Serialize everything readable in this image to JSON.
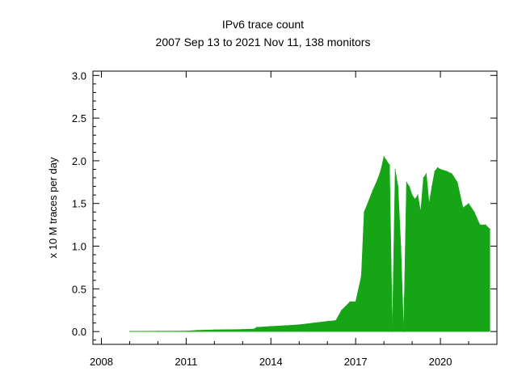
{
  "chart_data": {
    "type": "area",
    "title": "IPv6 trace count",
    "subtitle": "2007 Sep 13 to 2021 Nov 11, 138 monitors",
    "xlabel": "",
    "ylabel": "x 10 M traces per day",
    "xlim": [
      2007.7,
      2022.0
    ],
    "ylim": [
      -0.15,
      3.05
    ],
    "x_ticks": [
      2008,
      2011,
      2014,
      2017,
      2020
    ],
    "x_tick_labels": [
      "2008",
      "2011",
      "2014",
      "2017",
      "2020"
    ],
    "y_ticks": [
      0.0,
      0.5,
      1.0,
      1.5,
      2.0,
      2.5,
      3.0
    ],
    "y_tick_labels": [
      "0.0",
      "0.5",
      "1.0",
      "1.5",
      "2.0",
      "2.5",
      "3.0"
    ],
    "grid": false,
    "series": [
      {
        "color": "#16a516",
        "x": [
          2009.0,
          2010.0,
          2011.0,
          2011.4,
          2012.0,
          2013.0,
          2013.4,
          2013.5,
          2014.0,
          2014.5,
          2015.0,
          2015.5,
          2016.0,
          2016.3,
          2016.5,
          2016.8,
          2017.0,
          2017.2,
          2017.3,
          2017.6,
          2017.8,
          2017.9,
          2018.0,
          2018.1,
          2018.2,
          2018.3,
          2018.4,
          2018.5,
          2018.6,
          2018.7,
          2018.8,
          2018.9,
          2019.0,
          2019.1,
          2019.2,
          2019.3,
          2019.4,
          2019.5,
          2019.6,
          2019.7,
          2019.8,
          2019.9,
          2020.0,
          2020.2,
          2020.4,
          2020.6,
          2020.8,
          2021.0,
          2021.2,
          2021.4,
          2021.6,
          2021.75
        ],
        "y": [
          0.003,
          0.005,
          0.006,
          0.015,
          0.02,
          0.025,
          0.03,
          0.05,
          0.06,
          0.07,
          0.08,
          0.1,
          0.12,
          0.13,
          0.25,
          0.35,
          0.35,
          0.65,
          1.4,
          1.65,
          1.8,
          1.9,
          2.05,
          2.0,
          1.95,
          0.0,
          1.9,
          1.7,
          1.0,
          0.0,
          1.75,
          1.7,
          1.6,
          1.55,
          1.6,
          1.4,
          1.8,
          1.85,
          1.5,
          1.7,
          1.88,
          1.92,
          1.9,
          1.88,
          1.85,
          1.75,
          1.45,
          1.5,
          1.4,
          1.25,
          1.25,
          1.2
        ]
      }
    ]
  }
}
